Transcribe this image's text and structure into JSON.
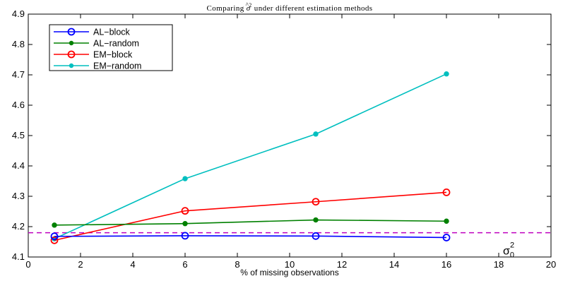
{
  "chart_data": {
    "type": "line",
    "title": "Comparing σ̂² under different estimation methods",
    "title_parts": {
      "before": "Comparing ",
      "symbol": "σ",
      "hat": "^",
      "superscript": "2",
      "after": " under different estimation methods"
    },
    "xlabel": "% of missing observations",
    "ylabel": "",
    "xlim": [
      0,
      20
    ],
    "ylim": [
      4.1,
      4.9
    ],
    "xticks": [
      0,
      2,
      4,
      6,
      8,
      10,
      12,
      14,
      16,
      18,
      20
    ],
    "yticks": [
      4.1,
      4.2,
      4.3,
      4.4,
      4.5,
      4.6,
      4.7,
      4.8,
      4.9
    ],
    "xtick_labels": [
      "0",
      "2",
      "4",
      "6",
      "8",
      "10",
      "12",
      "14",
      "16",
      "18",
      "20"
    ],
    "ytick_labels": [
      "4.1",
      "4.2",
      "4.3",
      "4.4",
      "4.5",
      "4.6",
      "4.7",
      "4.8",
      "4.9"
    ],
    "grid": false,
    "legend_position": "top-left",
    "series": [
      {
        "name": "AL−block",
        "color": "#0000ff",
        "marker": "open-circle",
        "x": [
          1,
          6,
          11,
          16
        ],
        "values": [
          4.168,
          4.17,
          4.169,
          4.164
        ]
      },
      {
        "name": "AL−random",
        "color": "#008000",
        "marker": "filled-dot",
        "x": [
          1,
          6,
          11,
          16
        ],
        "values": [
          4.205,
          4.21,
          4.222,
          4.218
        ]
      },
      {
        "name": "EM−block",
        "color": "#ff0000",
        "marker": "open-circle",
        "x": [
          1,
          6,
          11,
          16
        ],
        "values": [
          4.155,
          4.252,
          4.282,
          4.313
        ]
      },
      {
        "name": "EM−random",
        "color": "#00bfbf",
        "marker": "filled-dot",
        "x": [
          1,
          6,
          11,
          16
        ],
        "values": [
          4.16,
          4.358,
          4.505,
          4.703
        ]
      }
    ],
    "reference_line": {
      "y": 4.18,
      "color": "#bf00bf",
      "style": "dashed",
      "label": "σ",
      "label_subscript": "0",
      "label_superscript": "2"
    }
  }
}
